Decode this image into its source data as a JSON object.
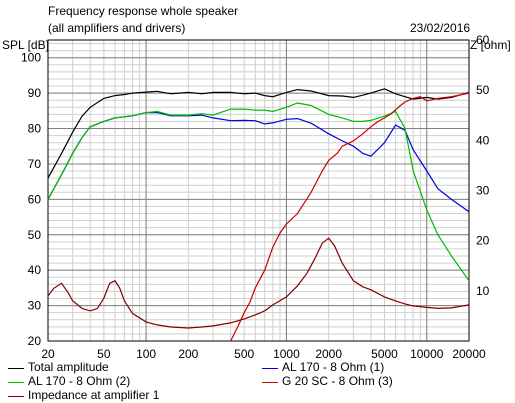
{
  "chart_data": {
    "type": "line",
    "title": "Frequency response whole speaker",
    "subtitle": "(all amplifiers and drivers)",
    "date": "23/02/2016",
    "ylabel_left": "SPL [dB]",
    "ylabel_right": "Z [ohm]",
    "x_scale": "log",
    "xlim": [
      20,
      20000
    ],
    "ylim_left": [
      20,
      105
    ],
    "ylim_right": [
      0,
      60
    ],
    "grid": true,
    "legend_placement": "bottom",
    "x_ticks": [
      {
        "value": 20,
        "label": "20"
      },
      {
        "value": 50,
        "label": "50"
      },
      {
        "value": 100,
        "label": "100"
      },
      {
        "value": 200,
        "label": "200"
      },
      {
        "value": 500,
        "label": "500"
      },
      {
        "value": 1000,
        "label": "1000"
      },
      {
        "value": 2000,
        "label": "2000"
      },
      {
        "value": 5000,
        "label": "5000"
      },
      {
        "value": 10000,
        "label": "10000"
      },
      {
        "value": 20000,
        "label": "20000"
      }
    ],
    "y_ticks_left": [
      {
        "value": 20,
        "label": "20"
      },
      {
        "value": 30,
        "label": "30"
      },
      {
        "value": 40,
        "label": "40"
      },
      {
        "value": 50,
        "label": "50"
      },
      {
        "value": 60,
        "label": "60"
      },
      {
        "value": 70,
        "label": "70"
      },
      {
        "value": 80,
        "label": "80"
      },
      {
        "value": 90,
        "label": "90"
      },
      {
        "value": 100,
        "label": "100"
      }
    ],
    "y_ticks_right": [
      {
        "value": 10,
        "label": "10"
      },
      {
        "value": 20,
        "label": "20"
      },
      {
        "value": 30,
        "label": "30"
      },
      {
        "value": 40,
        "label": "40"
      },
      {
        "value": 50,
        "label": "50"
      },
      {
        "value": 60,
        "label": "60"
      }
    ],
    "series": [
      {
        "name": "Total amplitude",
        "color": "#000000",
        "axis": "left",
        "x": [
          20,
          25,
          30,
          35,
          40,
          50,
          60,
          70,
          80,
          100,
          120,
          150,
          200,
          250,
          300,
          400,
          500,
          600,
          700,
          800,
          1000,
          1200,
          1500,
          2000,
          2500,
          3000,
          3500,
          4000,
          5000,
          6000,
          7000,
          8000,
          10000,
          12000,
          15000,
          20000
        ],
        "y": [
          66,
          73,
          79,
          83.5,
          86,
          88.5,
          89.3,
          89.6,
          90,
          90.3,
          90.5,
          89.8,
          90.2,
          89.8,
          90.2,
          90.2,
          89.8,
          90,
          89.3,
          89,
          90.2,
          91,
          90.6,
          89.3,
          89.2,
          88.8,
          89.4,
          90,
          91.2,
          89.8,
          89,
          88.3,
          88.8,
          88.3,
          88.8,
          90.2
        ]
      },
      {
        "name": "AL 170 - 8 Ohm (1)",
        "color": "#0000dd",
        "axis": "left",
        "x": [
          20,
          25,
          30,
          35,
          40,
          50,
          60,
          70,
          80,
          100,
          120,
          150,
          200,
          250,
          300,
          400,
          500,
          600,
          700,
          800,
          1000,
          1200,
          1500,
          2000,
          2500,
          3000,
          3500,
          4000,
          5000,
          6000,
          7000,
          8000,
          10000,
          12000,
          15000,
          20000
        ],
        "y": [
          60,
          67,
          73,
          77.5,
          80.5,
          82,
          83,
          83.3,
          83.6,
          84.5,
          84.5,
          83.6,
          83.6,
          83.8,
          83,
          82.2,
          82.3,
          82.2,
          81.3,
          81.6,
          82.6,
          82.8,
          81.5,
          78.5,
          76.5,
          75,
          73,
          72.2,
          76,
          81,
          79.5,
          74,
          68,
          63,
          60,
          56.5
        ]
      },
      {
        "name": "AL 170 - 8 Ohm (2)",
        "color": "#00bb00",
        "axis": "left",
        "x": [
          20,
          25,
          30,
          35,
          40,
          50,
          60,
          70,
          80,
          100,
          120,
          150,
          200,
          250,
          300,
          400,
          500,
          600,
          700,
          800,
          1000,
          1200,
          1500,
          2000,
          2500,
          3000,
          3500,
          4000,
          5000,
          6000,
          7000,
          8000,
          10000,
          12000,
          15000,
          20000
        ],
        "y": [
          60,
          67,
          73,
          77.5,
          80.5,
          82,
          83,
          83.3,
          83.6,
          84.5,
          84.8,
          83.8,
          83.8,
          84.2,
          83.8,
          85.5,
          85.5,
          85.2,
          85.2,
          84.8,
          86,
          87.2,
          86.5,
          84,
          83,
          82,
          82,
          82.3,
          83.5,
          84.8,
          80,
          68,
          57,
          50,
          44,
          37
        ]
      },
      {
        "name": "G 20 SC - 8 Ohm (3)",
        "color": "#cc0000",
        "axis": "left",
        "x": [
          400,
          450,
          500,
          550,
          600,
          700,
          800,
          900,
          1000,
          1200,
          1500,
          1800,
          2000,
          2300,
          2500,
          3000,
          3500,
          4000,
          4500,
          5000,
          5500,
          6000,
          6500,
          7000,
          8000,
          9000,
          10000,
          12000,
          15000,
          20000
        ],
        "y": [
          20,
          24,
          28,
          31,
          35,
          40,
          46.5,
          50.5,
          53,
          56,
          62,
          68,
          71,
          73,
          75,
          76.5,
          78.5,
          80.5,
          82,
          83,
          84,
          85.3,
          86.5,
          87.5,
          88.5,
          89,
          87.8,
          88.5,
          89,
          90
        ]
      },
      {
        "name": "Impedance at amplifier 1",
        "color": "#800000",
        "axis": "right",
        "x": [
          20,
          22,
          25,
          28,
          30,
          35,
          40,
          45,
          50,
          55,
          60,
          65,
          70,
          80,
          100,
          120,
          150,
          200,
          250,
          300,
          400,
          500,
          600,
          700,
          800,
          1000,
          1200,
          1400,
          1600,
          1800,
          2000,
          2200,
          2500,
          3000,
          3500,
          4000,
          5000,
          6000,
          7000,
          8000,
          10000,
          12000,
          15000,
          20000
        ],
        "y": [
          9,
          10.5,
          11.5,
          9.5,
          8,
          6.5,
          6,
          6.5,
          8.5,
          11.5,
          12,
          10.5,
          8,
          5.5,
          3.8,
          3.2,
          2.8,
          2.6,
          2.8,
          3,
          3.6,
          4.4,
          5.2,
          6,
          7.2,
          8.8,
          11,
          13.5,
          16.5,
          19.5,
          20.5,
          19,
          15.5,
          12,
          10.8,
          10.2,
          8.8,
          8,
          7.4,
          7,
          6.7,
          6.5,
          6.6,
          7.2
        ]
      }
    ]
  }
}
